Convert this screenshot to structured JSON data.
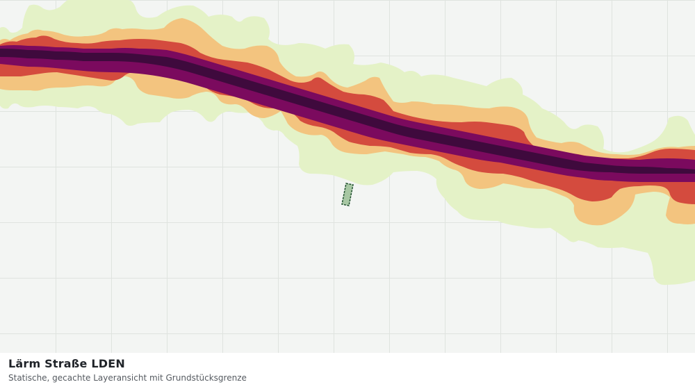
{
  "map": {
    "layer": "Lärm Straße LDEN",
    "colors": {
      "background": "#f3f5f3",
      "grid": "#dfe3df",
      "band_lightest": "#e4f2c7",
      "band_light": "#f3c47f",
      "band_medium": "#d44b3e",
      "band_dark": "#7b0a5e",
      "band_darkest": "#3f0a3d",
      "parcel_fill": "#a7c7a3",
      "parcel_stroke": "#1f4f2d"
    }
  },
  "caption": {
    "title": "Lärm Straße LDEN",
    "subtitle": "Statische, gecachte Layeransicht mit Grundstücksgrenze"
  }
}
